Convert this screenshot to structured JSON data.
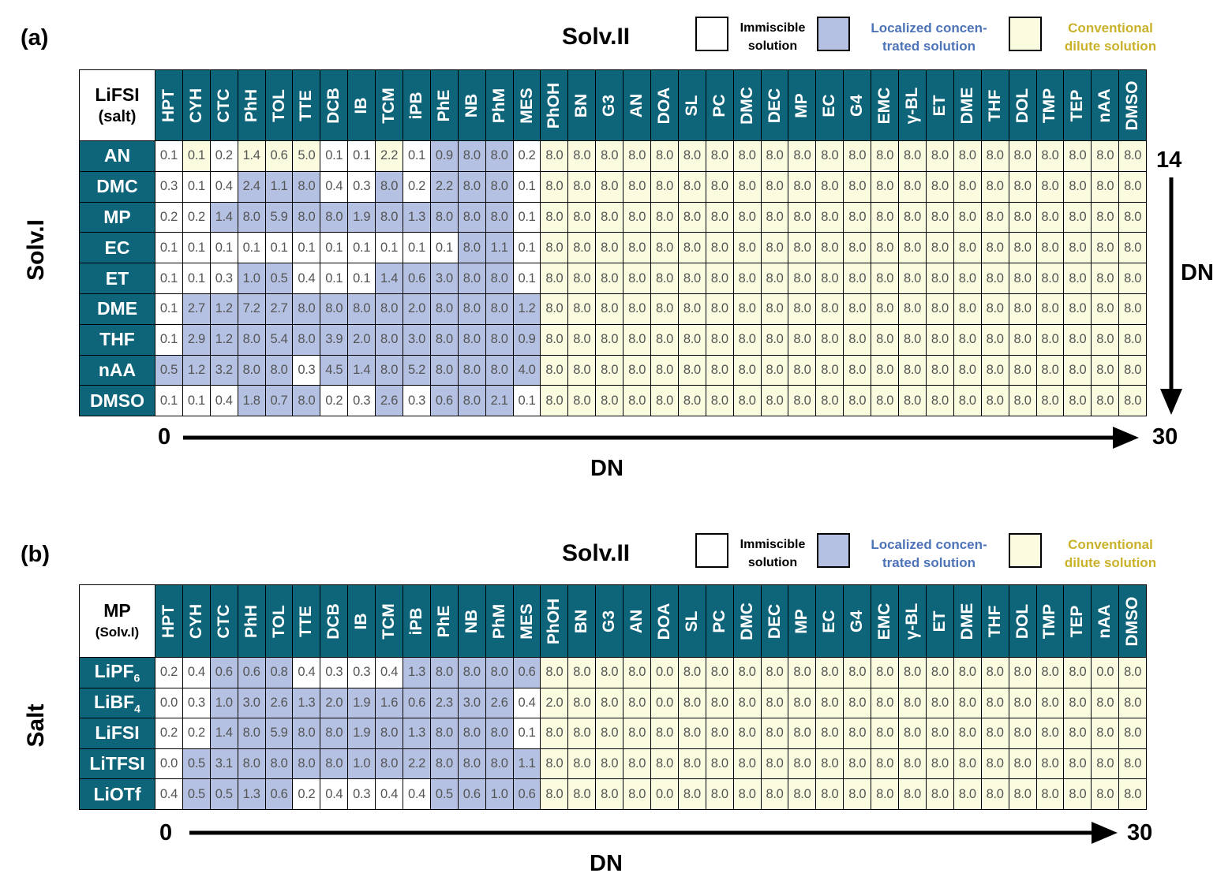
{
  "columns": [
    "HPT",
    "CYH",
    "CTC",
    "PhH",
    "TOL",
    "TTE",
    "DCB",
    "IB",
    "TCM",
    "iPB",
    "PhE",
    "NB",
    "PhM",
    "MES",
    "PhOH",
    "BN",
    "G3",
    "AN",
    "DOA",
    "SL",
    "PC",
    "DMC",
    "DEC",
    "MP",
    "EC",
    "G4",
    "EMC",
    "γ-BL",
    "ET",
    "DME",
    "THF",
    "DOL",
    "TMP",
    "TEP",
    "nAA",
    "DMSO"
  ],
  "legend": {
    "immiscible": "Immiscible\nsolution",
    "localized": "Localized concen-\ntrated solution",
    "conventional": "Conventional\ndilute solution",
    "colors": {
      "immiscible": "#ffffff",
      "localized": "#b4c1e2",
      "conventional": "#fbfbdf",
      "localized_text": "#4d73b8",
      "conventional_text": "#c9b22a",
      "header": "#0e6479"
    }
  },
  "panel_a": {
    "label": "(a)",
    "solv2_title": "Solv.II",
    "corner": [
      "LiFSI",
      "(salt)"
    ],
    "row_axis_label": "Solv.I",
    "x_axis": {
      "start": "0",
      "end": "30",
      "title": "DN"
    },
    "y_axis": {
      "top": "14",
      "title": "DN"
    },
    "rows": [
      "AN",
      "DMC",
      "MP",
      "EC",
      "ET",
      "DME",
      "THF",
      "nAA",
      "DMSO"
    ],
    "values": [
      [
        0.1,
        0.1,
        0.2,
        1.4,
        0.6,
        5.0,
        0.1,
        0.1,
        2.2,
        0.1,
        0.9,
        8.0,
        8.0,
        0.2,
        8.0,
        8.0,
        8.0,
        8.0,
        8.0,
        8.0,
        8.0,
        8.0,
        8.0,
        8.0,
        8.0,
        8.0,
        8.0,
        8.0,
        8.0,
        8.0,
        8.0,
        8.0,
        8.0,
        8.0,
        8.0,
        8.0
      ],
      [
        0.3,
        0.1,
        0.4,
        2.4,
        1.1,
        8.0,
        0.4,
        0.3,
        8.0,
        0.2,
        2.2,
        8.0,
        8.0,
        0.1,
        8.0,
        8.0,
        8.0,
        8.0,
        8.0,
        8.0,
        8.0,
        8.0,
        8.0,
        8.0,
        8.0,
        8.0,
        8.0,
        8.0,
        8.0,
        8.0,
        8.0,
        8.0,
        8.0,
        8.0,
        8.0,
        8.0
      ],
      [
        0.2,
        0.2,
        1.4,
        8.0,
        5.9,
        8.0,
        8.0,
        1.9,
        8.0,
        1.3,
        8.0,
        8.0,
        8.0,
        0.1,
        8.0,
        8.0,
        8.0,
        8.0,
        8.0,
        8.0,
        8.0,
        8.0,
        8.0,
        8.0,
        8.0,
        8.0,
        8.0,
        8.0,
        8.0,
        8.0,
        8.0,
        8.0,
        8.0,
        8.0,
        8.0,
        8.0
      ],
      [
        0.1,
        0.1,
        0.1,
        0.1,
        0.1,
        0.1,
        0.1,
        0.1,
        0.1,
        0.1,
        0.1,
        8.0,
        1.1,
        0.1,
        8.0,
        8.0,
        8.0,
        8.0,
        8.0,
        8.0,
        8.0,
        8.0,
        8.0,
        8.0,
        8.0,
        8.0,
        8.0,
        8.0,
        8.0,
        8.0,
        8.0,
        8.0,
        8.0,
        8.0,
        8.0,
        8.0
      ],
      [
        0.1,
        0.1,
        0.3,
        1.0,
        0.5,
        0.4,
        0.1,
        0.1,
        1.4,
        0.6,
        3.0,
        8.0,
        8.0,
        0.1,
        8.0,
        8.0,
        8.0,
        8.0,
        8.0,
        8.0,
        8.0,
        8.0,
        8.0,
        8.0,
        8.0,
        8.0,
        8.0,
        8.0,
        8.0,
        8.0,
        8.0,
        8.0,
        8.0,
        8.0,
        8.0,
        8.0
      ],
      [
        0.1,
        2.7,
        1.2,
        7.2,
        2.7,
        8.0,
        8.0,
        8.0,
        8.0,
        2.0,
        8.0,
        8.0,
        8.0,
        1.2,
        8.0,
        8.0,
        8.0,
        8.0,
        8.0,
        8.0,
        8.0,
        8.0,
        8.0,
        8.0,
        8.0,
        8.0,
        8.0,
        8.0,
        8.0,
        8.0,
        8.0,
        8.0,
        8.0,
        8.0,
        8.0,
        8.0
      ],
      [
        0.1,
        2.9,
        1.2,
        8.0,
        5.4,
        8.0,
        3.9,
        2.0,
        8.0,
        3.0,
        8.0,
        8.0,
        8.0,
        0.9,
        8.0,
        8.0,
        8.0,
        8.0,
        8.0,
        8.0,
        8.0,
        8.0,
        8.0,
        8.0,
        8.0,
        8.0,
        8.0,
        8.0,
        8.0,
        8.0,
        8.0,
        8.0,
        8.0,
        8.0,
        8.0,
        8.0
      ],
      [
        0.5,
        1.2,
        3.2,
        8.0,
        8.0,
        0.3,
        4.5,
        1.4,
        8.0,
        5.2,
        8.0,
        8.0,
        8.0,
        4.0,
        8.0,
        8.0,
        8.0,
        8.0,
        8.0,
        8.0,
        8.0,
        8.0,
        8.0,
        8.0,
        8.0,
        8.0,
        8.0,
        8.0,
        8.0,
        8.0,
        8.0,
        8.0,
        8.0,
        8.0,
        8.0,
        8.0
      ],
      [
        0.1,
        0.1,
        0.4,
        1.8,
        0.7,
        8.0,
        0.2,
        0.3,
        2.6,
        0.3,
        0.6,
        8.0,
        2.1,
        0.1,
        8.0,
        8.0,
        8.0,
        8.0,
        8.0,
        8.0,
        8.0,
        8.0,
        8.0,
        8.0,
        8.0,
        8.0,
        8.0,
        8.0,
        8.0,
        8.0,
        8.0,
        8.0,
        8.0,
        8.0,
        8.0,
        8.0
      ]
    ],
    "categories": [
      "ICICCCIICILLLI",
      "IIILLLIILILLLI",
      "IILLLLLLLLLLLI",
      "IIIIIIIIIIILLI",
      "IIILLIIILLLLLI",
      "ILLLLLLLLLLLLL",
      "ILLLLLLLLLLLLL",
      "LLLLLILLLLLLLL",
      "IIILLLIILILLLI"
    ]
  },
  "panel_b": {
    "label": "(b)",
    "solv2_title": "Solv.II",
    "corner": [
      "MP",
      "(Solv.I)"
    ],
    "row_axis_label": "Salt",
    "x_axis": {
      "start": "0",
      "end": "30",
      "title": "DN"
    },
    "rows": [
      [
        "LiPF",
        "6"
      ],
      [
        "LiBF",
        "4"
      ],
      [
        "LiFSI",
        ""
      ],
      [
        "LiTFSI",
        ""
      ],
      [
        "LiOTf",
        ""
      ]
    ],
    "values": [
      [
        0.2,
        0.4,
        0.6,
        0.6,
        0.8,
        0.4,
        0.3,
        0.3,
        0.4,
        1.3,
        8.0,
        8.0,
        8.0,
        0.6,
        8.0,
        8.0,
        8.0,
        8.0,
        0.0,
        8.0,
        8.0,
        8.0,
        8.0,
        8.0,
        8.0,
        8.0,
        8.0,
        8.0,
        8.0,
        8.0,
        8.0,
        8.0,
        8.0,
        8.0,
        0.0,
        8.0
      ],
      [
        0.0,
        0.3,
        1.0,
        3.0,
        2.6,
        1.3,
        2.0,
        1.9,
        1.6,
        0.6,
        2.3,
        3.0,
        2.6,
        0.4,
        2.0,
        8.0,
        8.0,
        8.0,
        0.0,
        8.0,
        8.0,
        8.0,
        8.0,
        8.0,
        8.0,
        8.0,
        8.0,
        8.0,
        8.0,
        8.0,
        8.0,
        8.0,
        8.0,
        8.0,
        8.0,
        8.0
      ],
      [
        0.2,
        0.2,
        1.4,
        8.0,
        5.9,
        8.0,
        8.0,
        1.9,
        8.0,
        1.3,
        8.0,
        8.0,
        8.0,
        0.1,
        8.0,
        8.0,
        8.0,
        8.0,
        8.0,
        8.0,
        8.0,
        8.0,
        8.0,
        8.0,
        8.0,
        8.0,
        8.0,
        8.0,
        8.0,
        8.0,
        8.0,
        8.0,
        8.0,
        8.0,
        8.0,
        8.0
      ],
      [
        0.0,
        0.5,
        3.1,
        8.0,
        8.0,
        8.0,
        8.0,
        1.0,
        8.0,
        2.2,
        8.0,
        8.0,
        8.0,
        1.1,
        8.0,
        8.0,
        8.0,
        8.0,
        8.0,
        8.0,
        8.0,
        8.0,
        8.0,
        8.0,
        8.0,
        8.0,
        8.0,
        8.0,
        8.0,
        8.0,
        8.0,
        8.0,
        8.0,
        8.0,
        8.0,
        8.0
      ],
      [
        0.4,
        0.5,
        0.5,
        1.3,
        0.6,
        0.2,
        0.4,
        0.3,
        0.4,
        0.4,
        0.5,
        0.6,
        1.0,
        0.6,
        8.0,
        8.0,
        8.0,
        8.0,
        0.0,
        8.0,
        8.0,
        8.0,
        8.0,
        8.0,
        8.0,
        8.0,
        8.0,
        8.0,
        8.0,
        8.0,
        8.0,
        8.0,
        8.0,
        8.0,
        8.0,
        8.0
      ]
    ],
    "categories": [
      "IILLLIIIILLLLL",
      "IILLLLLLLLLLLI",
      "IILLLLLLLLLLLI",
      "ILLLLLLLLLLLLL",
      "ILLLLIIIIILLLL"
    ]
  },
  "chart_data": [
    {
      "type": "heatmap",
      "title": "Solv.II",
      "ylabel": "Solv.I",
      "xlabel": "DN",
      "corner": "LiFSI (salt)",
      "x_range": [
        0,
        30
      ],
      "y_range_top": 14,
      "ref": "panel_a"
    },
    {
      "type": "heatmap",
      "title": "Solv.II",
      "ylabel": "Salt",
      "xlabel": "DN",
      "corner": "MP (Solv.I)",
      "x_range": [
        0,
        30
      ],
      "ref": "panel_b"
    }
  ]
}
